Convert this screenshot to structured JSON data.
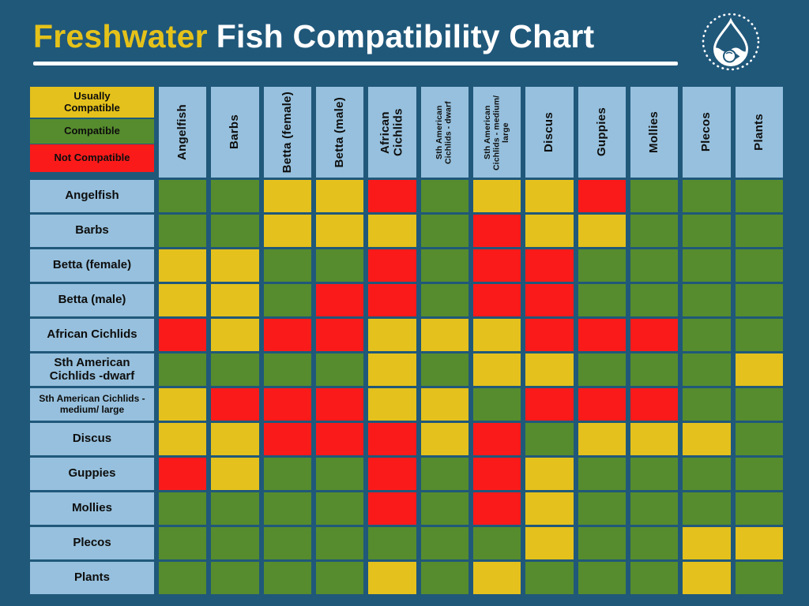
{
  "header": {
    "title_accent": "Freshwater",
    "title_rest": "Fish Compatibility Chart",
    "logo": "water-drop-badge"
  },
  "legend": [
    {
      "key": "Y",
      "label": "Usually Compatible",
      "color": "#e4c11c"
    },
    {
      "key": "G",
      "label": "Compatible",
      "color": "#568c2d"
    },
    {
      "key": "R",
      "label": "Not Compatible",
      "color": "#fb1a1a"
    }
  ],
  "colors": {
    "background": "#20587a",
    "header_cell": "#96c0dd",
    "usually_compatible": "#e4c11c",
    "compatible": "#568c2d",
    "not_compatible": "#fb1a1a",
    "title_accent": "#e5c21a",
    "title_text": "#ffffff"
  },
  "chart_data": {
    "type": "heatmap",
    "title": "Freshwater Fish Compatibility Chart",
    "legend_mapping": {
      "Y": "Usually Compatible",
      "G": "Compatible",
      "R": "Not Compatible"
    },
    "columns": [
      "Angelfish",
      "Barbs",
      "Betta (female)",
      "Betta (male)",
      "African Cichlids",
      "Sth American Cichlids - dwarf",
      "Sth American Cichlids - medium/ large",
      "Discus",
      "Guppies",
      "Mollies",
      "Plecos",
      "Plants"
    ],
    "rows": [
      "Angelfish",
      "Barbs",
      "Betta (female)",
      "Betta (male)",
      "African Cichlids",
      "Sth American Cichlids -dwarf",
      "Sth American Cichlids - medium/ large",
      "Discus",
      "Guppies",
      "Mollies",
      "Plecos",
      "Plants"
    ],
    "matrix": [
      [
        "G",
        "G",
        "Y",
        "Y",
        "R",
        "G",
        "Y",
        "Y",
        "R",
        "G",
        "G",
        "G"
      ],
      [
        "G",
        "G",
        "Y",
        "Y",
        "Y",
        "G",
        "R",
        "Y",
        "Y",
        "G",
        "G",
        "G"
      ],
      [
        "Y",
        "Y",
        "G",
        "G",
        "R",
        "G",
        "R",
        "R",
        "G",
        "G",
        "G",
        "G"
      ],
      [
        "Y",
        "Y",
        "G",
        "R",
        "R",
        "G",
        "R",
        "R",
        "G",
        "G",
        "G",
        "G"
      ],
      [
        "R",
        "Y",
        "R",
        "R",
        "Y",
        "Y",
        "Y",
        "R",
        "R",
        "R",
        "G",
        "G"
      ],
      [
        "G",
        "G",
        "G",
        "G",
        "Y",
        "G",
        "Y",
        "Y",
        "G",
        "G",
        "G",
        "Y"
      ],
      [
        "Y",
        "R",
        "R",
        "R",
        "Y",
        "Y",
        "G",
        "R",
        "R",
        "R",
        "G",
        "G"
      ],
      [
        "Y",
        "Y",
        "R",
        "R",
        "R",
        "Y",
        "R",
        "G",
        "Y",
        "Y",
        "Y",
        "G"
      ],
      [
        "R",
        "Y",
        "G",
        "G",
        "R",
        "G",
        "R",
        "Y",
        "G",
        "G",
        "G",
        "G"
      ],
      [
        "G",
        "G",
        "G",
        "G",
        "R",
        "G",
        "R",
        "Y",
        "G",
        "G",
        "G",
        "G"
      ],
      [
        "G",
        "G",
        "G",
        "G",
        "G",
        "G",
        "G",
        "Y",
        "G",
        "G",
        "Y",
        "Y"
      ],
      [
        "G",
        "G",
        "G",
        "G",
        "Y",
        "G",
        "Y",
        "G",
        "G",
        "G",
        "Y",
        "G"
      ]
    ]
  }
}
